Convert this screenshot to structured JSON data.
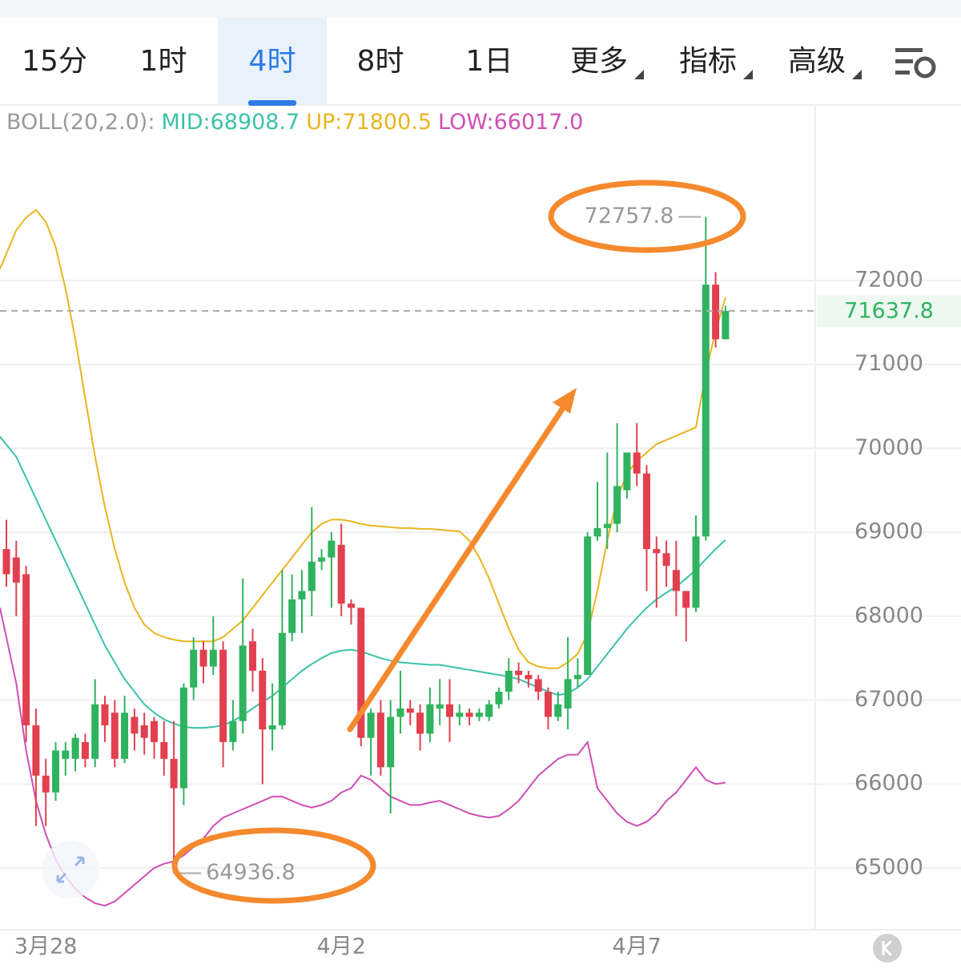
{
  "tabs": [
    "15分",
    "1时",
    "4时",
    "8时",
    "1日",
    "更多",
    "指标",
    "高级"
  ],
  "active_tab": 2,
  "chart_data": {
    "type": "candlestick",
    "legend": [
      "BOLL(20,2.0):",
      "MID:68908.7",
      "UP:71800.5",
      "LOW:66017.0"
    ],
    "legend_colors": [
      "#9a9a9a",
      "#3cc2a8",
      "#e8b520",
      "#cf4fb5"
    ],
    "categories": [
      null,
      null,
      null,
      null,
      "3月28",
      null,
      null,
      null,
      null,
      null,
      null,
      null,
      null,
      null,
      null,
      null,
      null,
      null,
      null,
      null,
      null,
      null,
      null,
      null,
      null,
      null,
      null,
      null,
      null,
      null,
      null,
      null,
      null,
      null,
      "4月2",
      null,
      null,
      null,
      null,
      null,
      null,
      null,
      null,
      null,
      null,
      null,
      null,
      null,
      null,
      null,
      null,
      null,
      null,
      null,
      null,
      null,
      null,
      null,
      null,
      null,
      null,
      null,
      null,
      null,
      "4月7",
      null,
      null,
      null,
      null,
      null,
      null,
      null,
      null,
      null
    ],
    "open": [
      68800,
      68700,
      68500,
      66700,
      66100,
      65900,
      66300,
      66300,
      66500,
      66300,
      66950,
      66850,
      66300,
      66800,
      66700,
      66750,
      66500,
      66300,
      65950,
      67150,
      67600,
      67400,
      67600,
      66500,
      66750,
      67700,
      67350,
      66650,
      66700,
      67800,
      68200,
      68300,
      68650,
      68700,
      68850,
      68150,
      68100,
      66550,
      66850,
      66200,
      66800,
      66900,
      66850,
      66600,
      66900,
      66950,
      66800,
      66850,
      66800,
      66800,
      66950,
      67100,
      67350,
      67300,
      67250,
      67100,
      66800,
      66900,
      67250,
      67300,
      68950,
      69050,
      69100,
      69500,
      69950,
      69700,
      68800,
      68750,
      68550,
      68300,
      68100,
      68950,
      71950,
      71300
    ],
    "high": [
      69150,
      68900,
      68600,
      66900,
      66300,
      66500,
      66500,
      66600,
      66600,
      67250,
      67050,
      67000,
      67050,
      66900,
      66850,
      66800,
      66750,
      66750,
      67200,
      67750,
      67700,
      68000,
      67700,
      67000,
      68450,
      67850,
      67500,
      67200,
      68550,
      68500,
      68550,
      69300,
      68800,
      69000,
      69100,
      68200,
      68100,
      66900,
      67000,
      67000,
      67350,
      67000,
      66950,
      67150,
      67250,
      67250,
      66950,
      66900,
      66900,
      67000,
      67150,
      67500,
      67450,
      67350,
      67300,
      67150,
      67100,
      67750,
      67500,
      69000,
      69600,
      69950,
      70300,
      69950,
      70300,
      69800,
      68950,
      68900,
      68900,
      68300,
      69200,
      72757.8,
      72100,
      71700
    ],
    "low": [
      68350,
      68000,
      66500,
      65500,
      65500,
      65800,
      66100,
      66150,
      66200,
      66200,
      66500,
      66200,
      66250,
      66400,
      66350,
      66300,
      66100,
      64936.8,
      65750,
      67000,
      67200,
      67300,
      66200,
      66400,
      66600,
      67100,
      66000,
      66400,
      66650,
      67700,
      67800,
      68000,
      68550,
      68100,
      68000,
      67900,
      66450,
      66100,
      66100,
      65650,
      66600,
      66700,
      66400,
      66500,
      66700,
      66500,
      66700,
      66700,
      66750,
      66750,
      66900,
      67000,
      67200,
      67150,
      67000,
      66650,
      66750,
      66650,
      67150,
      67300,
      68900,
      68800,
      69000,
      69400,
      69550,
      68300,
      68100,
      68350,
      68000,
      67700,
      68050,
      68900,
      71200,
      71300
    ],
    "close": [
      68500,
      68400,
      66700,
      66100,
      65900,
      66400,
      66400,
      66550,
      66300,
      66950,
      66700,
      66300,
      66850,
      66600,
      66550,
      66500,
      66300,
      65950,
      67150,
      67600,
      67400,
      67600,
      66500,
      66750,
      67650,
      67350,
      66650,
      66700,
      67800,
      68200,
      68300,
      68650,
      68700,
      68900,
      68150,
      68100,
      66550,
      66850,
      66200,
      66800,
      66900,
      66850,
      66600,
      66950,
      66950,
      66800,
      66850,
      66800,
      66850,
      66950,
      67100,
      67350,
      67300,
      67250,
      67100,
      66800,
      66950,
      67250,
      67300,
      68950,
      69050,
      69100,
      69550,
      69950,
      69700,
      68800,
      68750,
      68600,
      68300,
      68100,
      68950,
      71950,
      71300,
      71637.8
    ],
    "up_color": "#2fb35f",
    "down_color": "#e2404f",
    "series": [
      {
        "color": "#3cc2a8",
        "values": [
          70140,
          69900,
          69650,
          69400,
          69150,
          68900,
          68650,
          68400,
          68150,
          67900,
          67650,
          67450,
          67250,
          67100,
          66950,
          66850,
          66770,
          66720,
          66680,
          66670,
          66670,
          66680,
          66700,
          66750,
          66820,
          66900,
          66980,
          67050,
          67150,
          67250,
          67350,
          67430,
          67500,
          67560,
          67590,
          67600,
          67580,
          67540,
          67500,
          67470,
          67450,
          67440,
          67430,
          67420,
          67420,
          67400,
          67380,
          67360,
          67340,
          67320,
          67300,
          67280,
          67250,
          67200,
          67150,
          67100,
          67060,
          67080,
          67150,
          67250,
          67400,
          67550,
          67700,
          67850,
          67980,
          68100,
          68200,
          68280,
          68350,
          68450,
          68550,
          68680,
          68800,
          68908.7
        ]
      },
      {
        "color": "#e8b520",
        "values": [
          72140,
          72600,
          72750,
          72840,
          72700,
          72400,
          71900,
          71300,
          70600,
          69900,
          69300,
          68800,
          68400,
          68100,
          67900,
          67800,
          67750,
          67720,
          67700,
          67700,
          67700,
          67700,
          67750,
          67850,
          67950,
          68100,
          68250,
          68400,
          68550,
          68700,
          68850,
          69000,
          69100,
          69150,
          69150,
          69130,
          69100,
          69080,
          69070,
          69060,
          69050,
          69050,
          69040,
          69040,
          69030,
          69020,
          69010,
          68900,
          68700,
          68450,
          68150,
          67850,
          67600,
          67450,
          67400,
          67380,
          67380,
          67450,
          67550,
          67800,
          68300,
          68900,
          69400,
          69700,
          69850,
          69950,
          70050,
          70100,
          70150,
          70200,
          70250,
          70900,
          71400,
          71800.5
        ]
      },
      {
        "color": "#cf4fb5",
        "values": [
          68100,
          67200,
          66400,
          65800,
          65400,
          65100,
          64900,
          64750,
          64650,
          64580,
          64550,
          64600,
          64700,
          64800,
          64900,
          65000,
          65050,
          65080,
          65150,
          65250,
          65350,
          65500,
          65600,
          65650,
          65700,
          65750,
          65800,
          65850,
          65850,
          65800,
          65750,
          65720,
          65750,
          65800,
          65900,
          65950,
          66100,
          66050,
          65950,
          65850,
          65800,
          65750,
          65750,
          65780,
          65800,
          65750,
          65700,
          65650,
          65620,
          65600,
          65620,
          65700,
          65800,
          65950,
          66100,
          66200,
          66300,
          66350,
          66350,
          66500,
          65950,
          65800,
          65650,
          65550,
          65500,
          65550,
          65650,
          65800,
          65900,
          66050,
          66200,
          66050,
          66000,
          66017.0
        ]
      }
    ],
    "ylim": [
      64264,
      74053
    ],
    "yticks": [
      65000,
      66000,
      67000,
      68000,
      69000,
      70000,
      71000,
      72000
    ],
    "grid": true
  }
}
